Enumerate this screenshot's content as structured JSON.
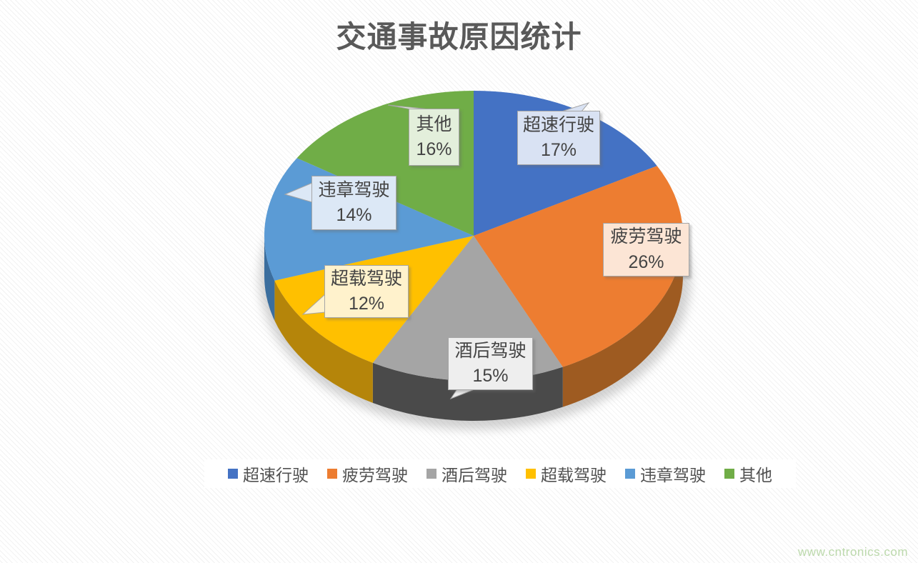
{
  "watermark": "www.cntronics.com",
  "chart_data": {
    "type": "pie",
    "effect": "3d",
    "title": "交通事故原因统计",
    "labels": [
      "超速行驶",
      "疲劳驾驶",
      "酒后驾驶",
      "超载驾驶",
      "违章驾驶",
      "其他"
    ],
    "values": [
      17,
      26,
      15,
      12,
      14,
      16
    ],
    "unit": "%",
    "value_labels": [
      "17%",
      "26%",
      "15%",
      "12%",
      "14%",
      "16%"
    ],
    "colors": [
      "#4472C4",
      "#ED7D31",
      "#A5A5A5",
      "#FFC000",
      "#5B9BD5",
      "#70AD47"
    ],
    "side_colors": [
      "#2F5597",
      "#9E5B21",
      "#4A4A4A",
      "#B5850A",
      "#3B6E9E",
      "#507E32"
    ],
    "callout_fills": [
      "#D9E2F3",
      "#FCE5D5",
      "#EEEEEE",
      "#FFF2CC",
      "#DCE8F6",
      "#E3EFDB"
    ],
    "callout_border": "#A6A6A6",
    "legend_position": "bottom",
    "start_angle_deg": 0,
    "direction": "clockwise"
  }
}
